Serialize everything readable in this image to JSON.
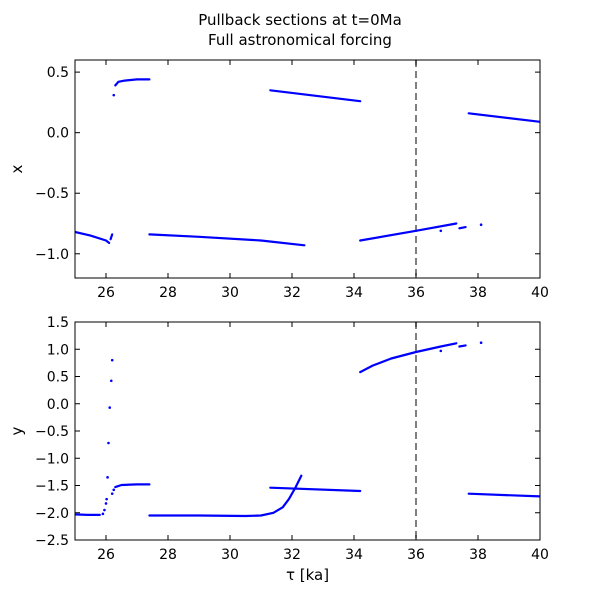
{
  "figure": {
    "title_line1": "Pullback sections at t=0Ma",
    "title_line2": "Full astronomical forcing"
  },
  "chart_data": [
    {
      "type": "scatter",
      "ylabel": "x",
      "xlabel": "",
      "xlim": [
        25,
        40
      ],
      "ylim": [
        -1.2,
        0.6
      ],
      "x_ticks": [
        26,
        28,
        30,
        32,
        34,
        36,
        38,
        40
      ],
      "y_ticks": [
        0.5,
        0.0,
        -0.5,
        -1.0
      ],
      "y_tick_labels": [
        "0.5",
        "0.0",
        "−0.5",
        "−1.0"
      ],
      "vline_x": 36,
      "marker_color": "#0000ff",
      "segments": [
        {
          "x": [
            25.0,
            25.5,
            26.0,
            26.1
          ],
          "y": [
            -0.82,
            -0.85,
            -0.89,
            -0.91
          ]
        },
        {
          "x": [
            26.15,
            26.2
          ],
          "y": [
            -0.88,
            -0.84
          ]
        },
        {
          "x": [
            26.3,
            26.4,
            26.6,
            27.0,
            27.4
          ],
          "y": [
            0.39,
            0.42,
            0.43,
            0.44,
            0.44
          ]
        },
        {
          "x": [
            27.4,
            29.0,
            31.0,
            32.4
          ],
          "y": [
            -0.84,
            -0.86,
            -0.89,
            -0.93
          ]
        },
        {
          "x": [
            31.3,
            34.2
          ],
          "y": [
            0.35,
            0.26
          ]
        },
        {
          "x": [
            34.2,
            36.0,
            37.3
          ],
          "y": [
            -0.89,
            -0.81,
            -0.75
          ]
        },
        {
          "x": [
            37.4,
            37.6
          ],
          "y": [
            -0.79,
            -0.78
          ]
        },
        {
          "x": [
            37.7,
            40.0
          ],
          "y": [
            0.16,
            0.09
          ]
        }
      ],
      "points": [
        {
          "x": 26.25,
          "y": 0.31
        },
        {
          "x": 36.8,
          "y": -0.81
        },
        {
          "x": 38.1,
          "y": -0.76
        }
      ]
    },
    {
      "type": "scatter",
      "ylabel": "y",
      "xlabel": "τ [ka]",
      "xlim": [
        25,
        40
      ],
      "ylim": [
        -2.5,
        1.5
      ],
      "x_ticks": [
        26,
        28,
        30,
        32,
        34,
        36,
        38,
        40
      ],
      "y_ticks": [
        1.5,
        1.0,
        0.5,
        0.0,
        -0.5,
        -1.0,
        -1.5,
        -2.0,
        -2.5
      ],
      "y_tick_labels": [
        "1.5",
        "1.0",
        "0.5",
        "0.0",
        "−0.5",
        "−1.0",
        "−1.5",
        "−2.0",
        "−2.5"
      ],
      "vline_x": 36,
      "marker_color": "#0000ff",
      "segments": [
        {
          "x": [
            25.0,
            25.4,
            25.8
          ],
          "y": [
            -2.03,
            -2.04,
            -2.04
          ]
        },
        {
          "x": [
            26.3,
            26.5,
            27.0,
            27.4
          ],
          "y": [
            -1.53,
            -1.49,
            -1.48,
            -1.48
          ]
        },
        {
          "x": [
            27.4,
            29.0,
            30.5,
            31.0,
            31.4,
            31.7,
            31.9,
            32.1,
            32.3
          ],
          "y": [
            -2.05,
            -2.05,
            -2.06,
            -2.05,
            -2.0,
            -1.9,
            -1.75,
            -1.55,
            -1.32
          ]
        },
        {
          "x": [
            31.3,
            34.2
          ],
          "y": [
            -1.54,
            -1.6
          ]
        },
        {
          "x": [
            34.2,
            34.6,
            35.2,
            36.0,
            36.8,
            37.3
          ],
          "y": [
            0.58,
            0.7,
            0.83,
            0.95,
            1.05,
            1.11
          ]
        },
        {
          "x": [
            37.4,
            37.6
          ],
          "y": [
            1.05,
            1.07
          ]
        },
        {
          "x": [
            37.7,
            40.0
          ],
          "y": [
            -1.65,
            -1.7
          ]
        }
      ],
      "points": [
        {
          "x": 25.9,
          "y": -2.02
        },
        {
          "x": 25.95,
          "y": -1.95
        },
        {
          "x": 26.0,
          "y": -1.83
        },
        {
          "x": 26.02,
          "y": -1.75
        },
        {
          "x": 26.05,
          "y": -1.35
        },
        {
          "x": 26.08,
          "y": -0.72
        },
        {
          "x": 26.12,
          "y": -0.07
        },
        {
          "x": 26.17,
          "y": 0.42
        },
        {
          "x": 26.2,
          "y": 0.8
        },
        {
          "x": 26.2,
          "y": -1.65
        },
        {
          "x": 26.25,
          "y": -1.58
        },
        {
          "x": 36.8,
          "y": 0.97
        },
        {
          "x": 38.1,
          "y": 1.12
        }
      ]
    }
  ]
}
